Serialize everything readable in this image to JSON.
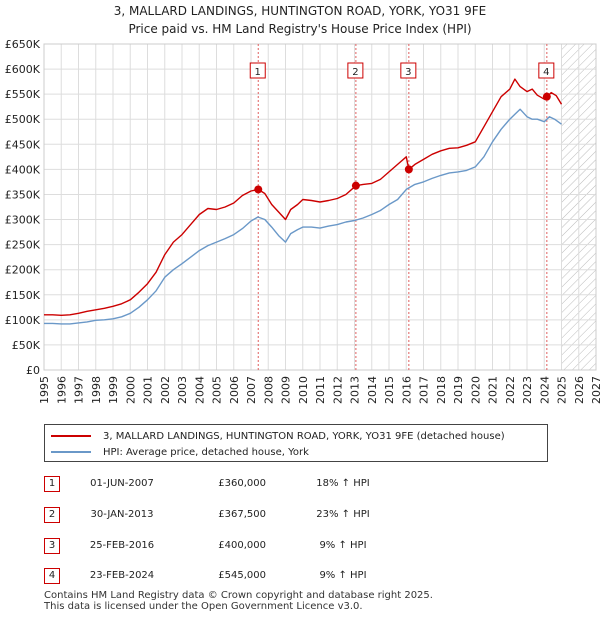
{
  "title": "3, MALLARD LANDINGS, HUNTINGTON ROAD, YORK, YO31 9FE",
  "subtitle": "Price paid vs. HM Land Registry's House Price Index (HPI)",
  "colors": {
    "property": "#cc0000",
    "hpi": "#6a98c8",
    "marker_line": "#e06060",
    "grid": "#dddddd",
    "box": "#cc0000"
  },
  "chart_data": {
    "type": "line",
    "title": "3, MALLARD LANDINGS, HUNTINGTON ROAD, YORK, YO31 9FE",
    "subtitle": "Price paid vs. HM Land Registry's House Price Index (HPI)",
    "xlabel": "",
    "ylabel": "",
    "xlim": [
      1995,
      2027
    ],
    "ylim": [
      0,
      650000
    ],
    "grid": true,
    "y_ticks": [
      {
        "value": 0,
        "label": "£0"
      },
      {
        "value": 50000,
        "label": "£50K"
      },
      {
        "value": 100000,
        "label": "£100K"
      },
      {
        "value": 150000,
        "label": "£150K"
      },
      {
        "value": 200000,
        "label": "£200K"
      },
      {
        "value": 250000,
        "label": "£250K"
      },
      {
        "value": 300000,
        "label": "£300K"
      },
      {
        "value": 350000,
        "label": "£350K"
      },
      {
        "value": 400000,
        "label": "£400K"
      },
      {
        "value": 450000,
        "label": "£450K"
      },
      {
        "value": 500000,
        "label": "£500K"
      },
      {
        "value": 550000,
        "label": "£550K"
      },
      {
        "value": 600000,
        "label": "£600K"
      },
      {
        "value": 650000,
        "label": "£650K"
      }
    ],
    "x_ticks": [
      "1995",
      "1996",
      "1997",
      "1998",
      "1999",
      "2000",
      "2001",
      "2002",
      "2003",
      "2004",
      "2005",
      "2006",
      "2007",
      "2008",
      "2009",
      "2010",
      "2011",
      "2012",
      "2013",
      "2014",
      "2015",
      "2016",
      "2017",
      "2018",
      "2019",
      "2020",
      "2021",
      "2022",
      "2023",
      "2024",
      "2025",
      "2026",
      "2027"
    ],
    "hatch_from": 2025.0,
    "series": [
      {
        "name": "3, MALLARD LANDINGS, HUNTINGTON ROAD, YORK, YO31 9FE (detached house)",
        "color": "#cc0000",
        "x": [
          1995,
          1995.5,
          1996,
          1996.5,
          1997,
          1997.5,
          1998,
          1998.5,
          1999,
          1999.5,
          2000,
          2000.5,
          2001,
          2001.5,
          2002,
          2002.5,
          2003,
          2003.5,
          2004,
          2004.5,
          2005,
          2005.5,
          2006,
          2006.5,
          2007,
          2007.42,
          2007.8,
          2008.2,
          2008.6,
          2009,
          2009.3,
          2009.7,
          2010,
          2010.5,
          2011,
          2011.5,
          2012,
          2012.5,
          2013.08,
          2013.5,
          2014,
          2014.5,
          2015,
          2015.5,
          2016,
          2016.15,
          2016.5,
          2017,
          2017.5,
          2018,
          2018.5,
          2019,
          2019.5,
          2020,
          2020.5,
          2021,
          2021.5,
          2022,
          2022.3,
          2022.6,
          2023,
          2023.3,
          2023.6,
          2024,
          2024.15,
          2024.4,
          2024.7,
          2025
        ],
        "y": [
          110000,
          110000,
          109000,
          110000,
          113000,
          117000,
          120000,
          123000,
          127000,
          132000,
          140000,
          155000,
          172000,
          195000,
          230000,
          255000,
          270000,
          290000,
          310000,
          322000,
          320000,
          325000,
          333000,
          348000,
          357000,
          360000,
          352000,
          330000,
          315000,
          300000,
          320000,
          330000,
          340000,
          338000,
          335000,
          338000,
          342000,
          350000,
          367500,
          370000,
          372000,
          380000,
          395000,
          410000,
          425000,
          400000,
          410000,
          420000,
          430000,
          437000,
          442000,
          443000,
          448000,
          455000,
          485000,
          515000,
          545000,
          560000,
          580000,
          565000,
          555000,
          560000,
          548000,
          540000,
          545000,
          553000,
          547000,
          530000
        ]
      },
      {
        "name": "HPI: Average price, detached house, York",
        "color": "#6a98c8",
        "x": [
          1995,
          1995.5,
          1996,
          1996.5,
          1997,
          1997.5,
          1998,
          1998.5,
          1999,
          1999.5,
          2000,
          2000.5,
          2001,
          2001.5,
          2002,
          2002.5,
          2003,
          2003.5,
          2004,
          2004.5,
          2005,
          2005.5,
          2006,
          2006.5,
          2007,
          2007.4,
          2007.8,
          2008.2,
          2008.6,
          2009,
          2009.3,
          2009.7,
          2010,
          2010.5,
          2011,
          2011.5,
          2012,
          2012.5,
          2013,
          2013.5,
          2014,
          2014.5,
          2015,
          2015.5,
          2016,
          2016.5,
          2017,
          2017.5,
          2018,
          2018.5,
          2019,
          2019.5,
          2020,
          2020.5,
          2021,
          2021.5,
          2022,
          2022.3,
          2022.6,
          2023,
          2023.3,
          2023.6,
          2024,
          2024.3,
          2024.6,
          2025
        ],
        "y": [
          93000,
          93000,
          92000,
          92000,
          94000,
          96000,
          99000,
          100000,
          102000,
          106000,
          113000,
          125000,
          140000,
          158000,
          185000,
          200000,
          212000,
          225000,
          238000,
          248000,
          255000,
          262000,
          270000,
          282000,
          297000,
          305000,
          300000,
          285000,
          268000,
          255000,
          272000,
          280000,
          285000,
          285000,
          283000,
          287000,
          290000,
          295000,
          298000,
          303000,
          310000,
          318000,
          330000,
          340000,
          360000,
          370000,
          375000,
          382000,
          388000,
          393000,
          395000,
          398000,
          405000,
          425000,
          455000,
          480000,
          500000,
          510000,
          520000,
          505000,
          500000,
          500000,
          495000,
          505000,
          500000,
          490000
        ]
      }
    ],
    "sales": [
      {
        "label": "1",
        "x": 2007.42,
        "price": 360000
      },
      {
        "label": "2",
        "x": 2013.08,
        "price": 367500
      },
      {
        "label": "3",
        "x": 2016.15,
        "price": 400000
      },
      {
        "label": "4",
        "x": 2024.15,
        "price": 545000
      }
    ],
    "legend_position": "below"
  },
  "legend": {
    "property": "3, MALLARD LANDINGS, HUNTINGTON ROAD, YORK, YO31 9FE (detached house)",
    "hpi": "HPI: Average price, detached house, York"
  },
  "transactions": [
    {
      "num": "1",
      "date": "01-JUN-2007",
      "price": "£360,000",
      "pct": "18% ↑ HPI"
    },
    {
      "num": "2",
      "date": "30-JAN-2013",
      "price": "£367,500",
      "pct": "23% ↑ HPI"
    },
    {
      "num": "3",
      "date": "25-FEB-2016",
      "price": "£400,000",
      "pct": "9% ↑ HPI"
    },
    {
      "num": "4",
      "date": "23-FEB-2024",
      "price": "£545,000",
      "pct": "9% ↑ HPI"
    }
  ],
  "footer": {
    "line1": "Contains HM Land Registry data © Crown copyright and database right 2025.",
    "line2": "This data is licensed under the Open Government Licence v3.0."
  }
}
